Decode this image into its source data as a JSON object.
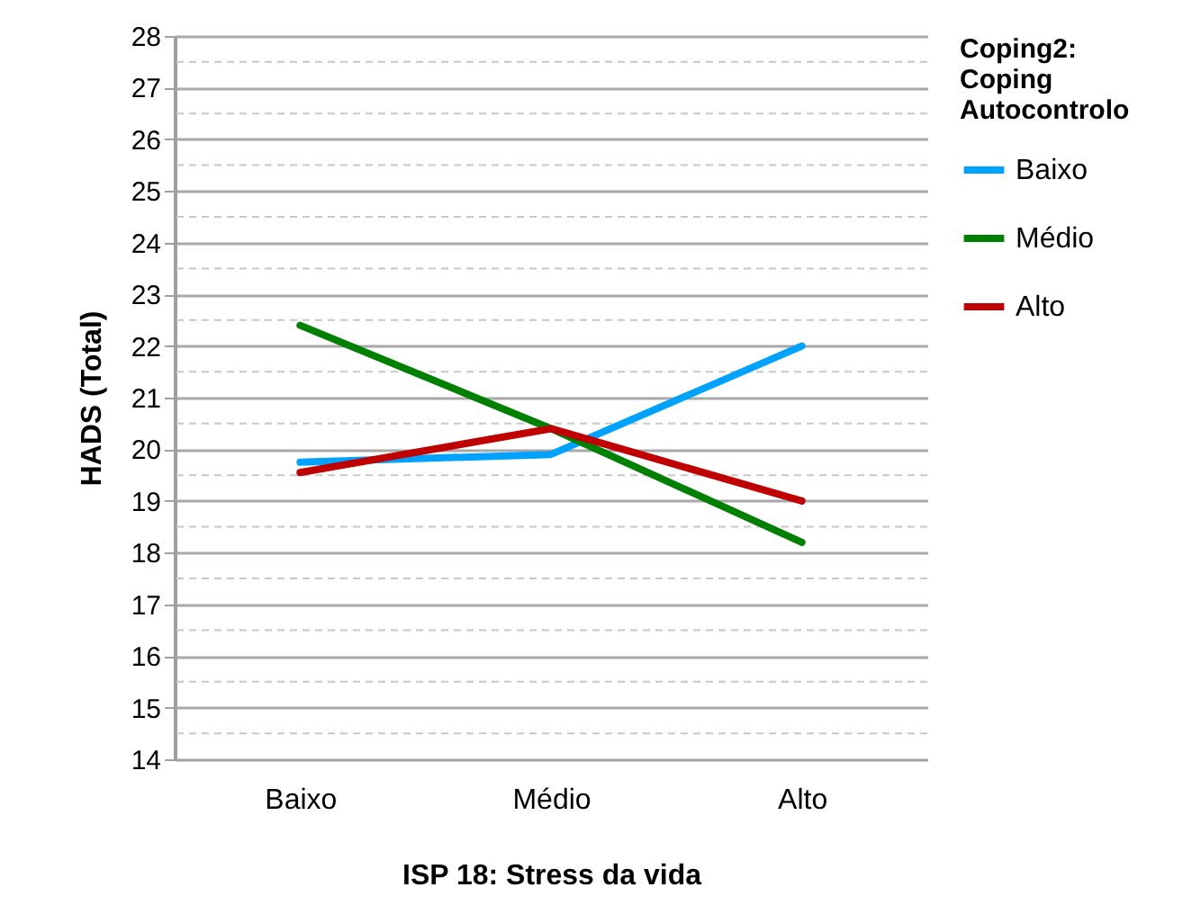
{
  "chart_data": {
    "type": "line",
    "xlabel": "ISP 18:  Stress da vida",
    "ylabel": "HADS (Total)",
    "legend_title": "Coping2: Coping Autocontrolo",
    "categories": [
      "Baixo",
      "Médio",
      "Alto"
    ],
    "series": [
      {
        "name": "Baixo",
        "color": "#00a2ff",
        "values": [
          19.75,
          19.9,
          22.0
        ]
      },
      {
        "name": "Médio",
        "color": "#008000",
        "values": [
          22.4,
          20.4,
          18.2
        ]
      },
      {
        "name": "Alto",
        "color": "#c00000",
        "values": [
          19.55,
          20.4,
          19.0
        ]
      }
    ],
    "ylim": [
      14,
      28
    ],
    "yticks": [
      14,
      15,
      16,
      17,
      18,
      19,
      20,
      21,
      22,
      23,
      24,
      25,
      26,
      27,
      28
    ],
    "grid": "y",
    "legend": "right",
    "marker": "none",
    "line_style": "solid"
  }
}
